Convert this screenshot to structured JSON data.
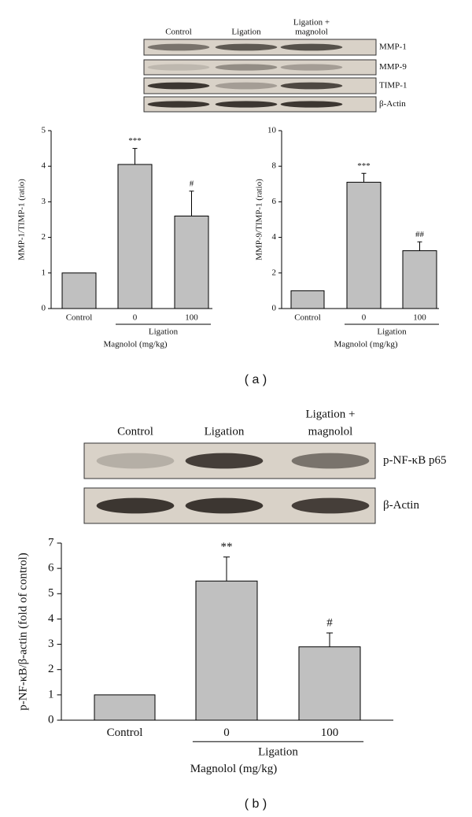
{
  "blots": [
    {
      "lanes": [
        [
          "Control"
        ],
        [
          "Ligation"
        ],
        [
          "Ligation +",
          "magnolol"
        ]
      ],
      "rows": [
        "MMP-1",
        "MMP-9",
        "TIMP-1",
        "β-Actin"
      ],
      "panel": "( a )"
    },
    {
      "lanes": [
        [
          "Control"
        ],
        [
          "Ligation"
        ],
        [
          "Ligation +",
          "magnolol"
        ]
      ],
      "rows": [
        "p-NF-κB p65",
        "β-Actin"
      ],
      "panel": "( b )"
    }
  ],
  "chart_data": [
    {
      "type": "bar",
      "y_label": "MMP-1/TIMP-1 (ratio)",
      "x_label": "Magnolol (mg/kg)",
      "group_label": "Ligation",
      "categories": [
        "Control",
        "0",
        "100"
      ],
      "values": [
        1,
        4.05,
        2.6
      ],
      "errors": [
        null,
        0.45,
        0.7
      ],
      "annotations": [
        null,
        "***",
        "#"
      ],
      "color": "#c0c0c0",
      "ylim": [
        0,
        5
      ],
      "yticks": [
        0,
        1,
        2,
        3,
        4,
        5
      ]
    },
    {
      "type": "bar",
      "y_label": "MMP-9/TIMP-1 (ratio)",
      "x_label": "Magnolol (mg/kg)",
      "group_label": "Ligation",
      "categories": [
        "Control",
        "0",
        "100"
      ],
      "values": [
        1,
        7.1,
        3.25
      ],
      "errors": [
        null,
        0.5,
        0.5
      ],
      "annotations": [
        null,
        "***",
        "##"
      ],
      "color": "#c0c0c0",
      "ylim": [
        0,
        10
      ],
      "yticks": [
        0,
        2,
        4,
        6,
        8,
        10
      ]
    },
    {
      "type": "bar",
      "y_label": "p-NF-κB/β-actin (fold of control)",
      "x_label": "Magnolol (mg/kg)",
      "group_label": "Ligation",
      "categories": [
        "Control",
        "0",
        "100"
      ],
      "values": [
        1,
        5.5,
        2.9
      ],
      "errors": [
        null,
        0.95,
        0.55
      ],
      "annotations": [
        null,
        "**",
        "#"
      ],
      "color": "#c0c0c0",
      "ylim": [
        0,
        7
      ],
      "yticks": [
        0,
        1,
        2,
        3,
        4,
        5,
        6,
        7
      ]
    }
  ]
}
